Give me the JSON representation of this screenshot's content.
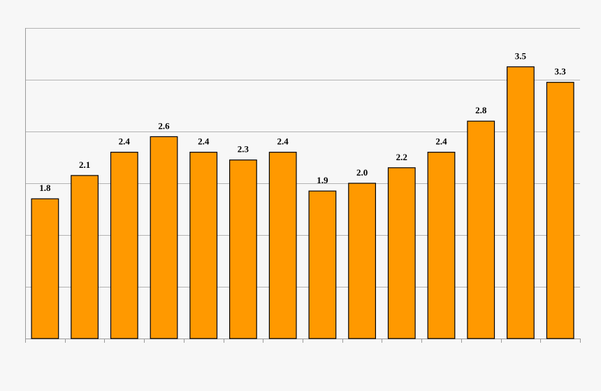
{
  "chart_data": {
    "type": "bar",
    "title": "",
    "xlabel": "",
    "ylabel": "",
    "categories": [
      "",
      "",
      "",
      "",
      "",
      "",
      "",
      "",
      "",
      "",
      "",
      "",
      "",
      ""
    ],
    "values": [
      1.8,
      2.1,
      2.4,
      2.6,
      2.4,
      2.3,
      2.4,
      1.9,
      2.0,
      2.2,
      2.4,
      2.8,
      3.5,
      3.3
    ],
    "data_labels": [
      "1.8",
      "2.1",
      "2.4",
      "2.6",
      "2.4",
      "2.3",
      "2.4",
      "1.9",
      "2.0",
      "2.2",
      "2.4",
      "2.8",
      "3.5",
      "3.3"
    ],
    "ylim": [
      0,
      4.0
    ],
    "y_gridlines": [
      0.667,
      1.333,
      2.0,
      2.667,
      3.333,
      4.0
    ],
    "grid": true,
    "legend": "none",
    "bar_color": "#ff9900",
    "bar_outline_color": "#000000",
    "background_color": "#f7f7f7"
  }
}
